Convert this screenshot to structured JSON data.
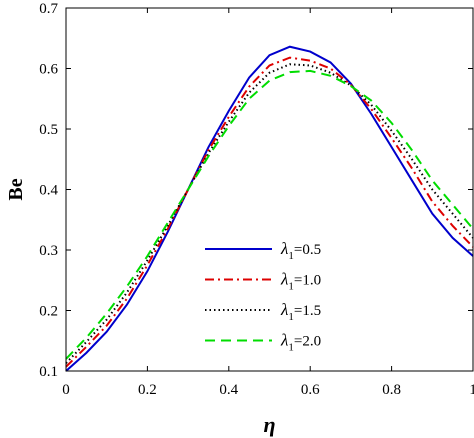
{
  "chart_data": {
    "type": "line",
    "title": "",
    "xlabel": "η",
    "ylabel": "Be",
    "xlim": [
      0,
      1
    ],
    "ylim": [
      0.1,
      0.7
    ],
    "xticks": [
      0,
      0.2,
      0.4,
      0.6,
      0.8,
      1
    ],
    "xtick_labels": [
      "0",
      "0.2",
      "0.4",
      "0.6",
      "0.8",
      "1"
    ],
    "yticks": [
      0.1,
      0.2,
      0.3,
      0.4,
      0.5,
      0.6,
      0.7
    ],
    "ytick_labels": [
      "0.1",
      "0.2",
      "0.3",
      "0.4",
      "0.5",
      "0.6",
      "0.7"
    ],
    "grid": false,
    "legend_position": "center-right",
    "series": [
      {
        "name": "λ1=0.5",
        "label_symbol": "λ",
        "label_sub": "1",
        "label_value": "=0.5",
        "color": "#0000cc",
        "dash": "solid",
        "x": [
          0,
          0.05,
          0.1,
          0.15,
          0.2,
          0.25,
          0.3,
          0.35,
          0.4,
          0.45,
          0.5,
          0.55,
          0.6,
          0.65,
          0.7,
          0.75,
          0.8,
          0.85,
          0.9,
          0.95,
          1.0
        ],
        "y": [
          0.1,
          0.13,
          0.165,
          0.21,
          0.265,
          0.33,
          0.4,
          0.47,
          0.53,
          0.585,
          0.622,
          0.636,
          0.628,
          0.61,
          0.575,
          0.525,
          0.47,
          0.415,
          0.36,
          0.32,
          0.29
        ]
      },
      {
        "name": "λ1=1.0",
        "label_symbol": "λ",
        "label_sub": "1",
        "label_value": "=1.0",
        "color": "#dd0000",
        "dash": "dashdot",
        "x": [
          0,
          0.05,
          0.1,
          0.15,
          0.2,
          0.25,
          0.3,
          0.35,
          0.4,
          0.45,
          0.5,
          0.55,
          0.6,
          0.65,
          0.7,
          0.75,
          0.8,
          0.85,
          0.9,
          0.95,
          1.0
        ],
        "y": [
          0.107,
          0.14,
          0.175,
          0.22,
          0.275,
          0.335,
          0.4,
          0.465,
          0.52,
          0.57,
          0.605,
          0.618,
          0.613,
          0.6,
          0.573,
          0.533,
          0.485,
          0.435,
          0.38,
          0.34,
          0.305
        ]
      },
      {
        "name": "λ1=1.5",
        "label_symbol": "λ",
        "label_sub": "1",
        "label_value": "=1.5",
        "color": "#000000",
        "dash": "dotted",
        "x": [
          0,
          0.05,
          0.1,
          0.15,
          0.2,
          0.25,
          0.3,
          0.35,
          0.4,
          0.45,
          0.5,
          0.55,
          0.6,
          0.65,
          0.7,
          0.75,
          0.8,
          0.85,
          0.9,
          0.95,
          1.0
        ],
        "y": [
          0.113,
          0.148,
          0.185,
          0.23,
          0.283,
          0.34,
          0.4,
          0.46,
          0.512,
          0.56,
          0.593,
          0.607,
          0.605,
          0.593,
          0.572,
          0.54,
          0.497,
          0.45,
          0.4,
          0.36,
          0.32
        ]
      },
      {
        "name": "λ1=2.0",
        "label_symbol": "λ",
        "label_sub": "1",
        "label_value": "=2.0",
        "color": "#00dd00",
        "dash": "dashed",
        "x": [
          0,
          0.05,
          0.1,
          0.15,
          0.2,
          0.25,
          0.3,
          0.35,
          0.4,
          0.45,
          0.5,
          0.55,
          0.6,
          0.65,
          0.7,
          0.75,
          0.8,
          0.85,
          0.9,
          0.95,
          1.0
        ],
        "y": [
          0.12,
          0.155,
          0.195,
          0.24,
          0.29,
          0.345,
          0.4,
          0.455,
          0.505,
          0.55,
          0.58,
          0.594,
          0.596,
          0.588,
          0.571,
          0.547,
          0.51,
          0.465,
          0.415,
          0.375,
          0.335
        ]
      }
    ]
  }
}
